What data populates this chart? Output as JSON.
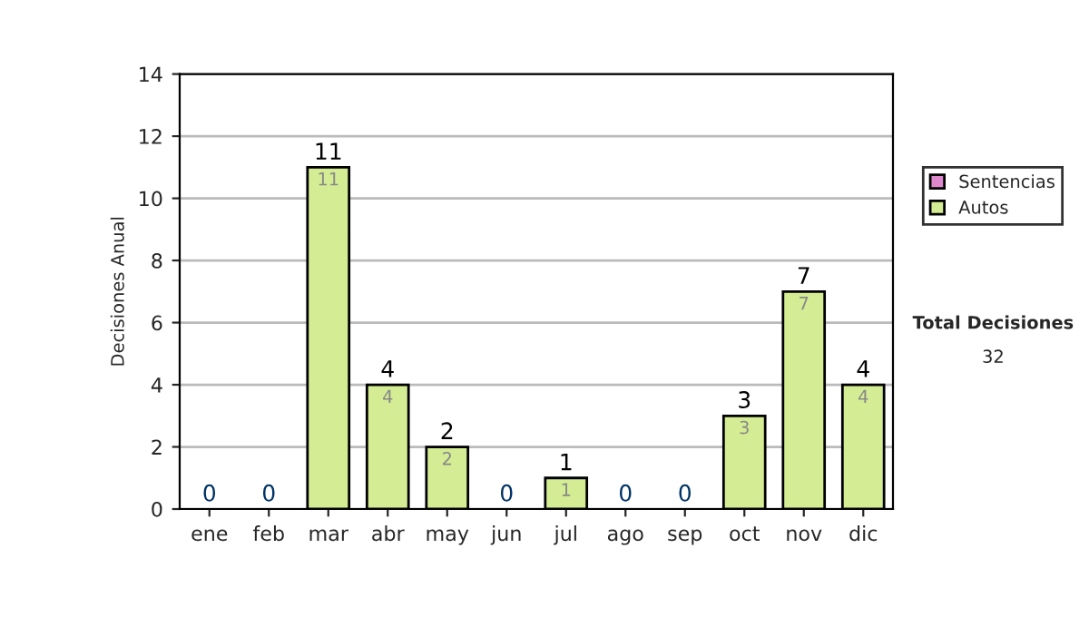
{
  "chart_data": {
    "type": "bar",
    "stacked": true,
    "ylabel": "Decisiones Anual",
    "categories": [
      "ene",
      "feb",
      "mar",
      "abr",
      "may",
      "jun",
      "jul",
      "ago",
      "sep",
      "oct",
      "nov",
      "dic"
    ],
    "series": [
      {
        "name": "Sentencias",
        "color": "#dd88cc",
        "values": [
          0,
          0,
          0,
          0,
          0,
          0,
          0,
          0,
          0,
          0,
          0,
          0
        ]
      },
      {
        "name": "Autos",
        "color": "#d4ec94",
        "values": [
          0,
          0,
          11,
          4,
          2,
          0,
          1,
          0,
          0,
          3,
          7,
          4
        ],
        "value_labels": [
          null,
          null,
          "11",
          "4",
          "2",
          null,
          "1",
          null,
          null,
          "3",
          "7",
          "4"
        ]
      }
    ],
    "totals": [
      "0",
      "0",
      "11",
      "4",
      "2",
      "0",
      "1",
      "0",
      "0",
      "3",
      "7",
      "4"
    ],
    "ylim": [
      0,
      14
    ],
    "yticks": [
      0,
      2,
      4,
      6,
      8,
      10,
      12,
      14
    ],
    "grid": "y",
    "legend": "right",
    "annotations": [
      "Total Decisiones",
      "32"
    ]
  }
}
